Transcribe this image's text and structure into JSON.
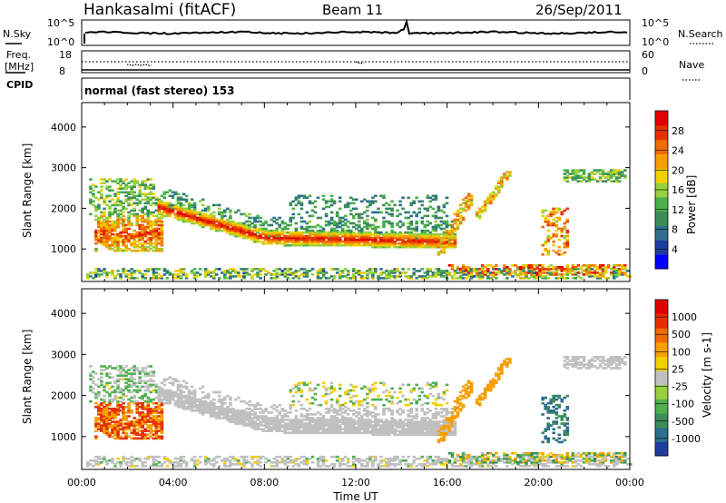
{
  "header": {
    "station": "Hankasalmi (fitACF)",
    "beam": "Beam 11",
    "date": "26/Sep/2011"
  },
  "noise_panel": {
    "left_label": "N.Sky",
    "left_ticks": [
      "10^5",
      "10^0"
    ],
    "right_label": "N.Search",
    "right_ticks": [
      "10^5",
      "10^0"
    ]
  },
  "freq_panel": {
    "left_label_1": "Freq.",
    "left_label_2": "[MHz]",
    "left_ticks": [
      "18",
      "8"
    ],
    "right_label": "Nave",
    "right_ticks": [
      "60",
      "0"
    ]
  },
  "cpid": {
    "label": "CPID",
    "value": "normal (fast stereo) 153"
  },
  "colors": {
    "power": [
      "#0000ff",
      "#1e3ca0",
      "#2e6e8e",
      "#3c8c5a",
      "#4bb04b",
      "#96d03c",
      "#f0d000",
      "#f5a000",
      "#ef6a00",
      "#e63000",
      "#e00000"
    ],
    "velocity": [
      "#1e3ca0",
      "#2e6e8e",
      "#3c8c5a",
      "#50b050",
      "#96d03c",
      "#c0c0c0",
      "#f0d000",
      "#f5a000",
      "#ef6a00",
      "#e63000",
      "#e00000"
    ]
  },
  "chart_data": [
    {
      "type": "heatmap",
      "title": "",
      "xlabel": "Time UT",
      "ylabel": "Slant Range [km]",
      "x_tick_labels": [
        "00:00",
        "04:00",
        "08:00",
        "12:00",
        "16:00",
        "20:00",
        "00:00"
      ],
      "y_ticks": [
        1000,
        2000,
        3000,
        4000
      ],
      "xlim": [
        0,
        24
      ],
      "ylim": [
        200,
        4600
      ],
      "colorbar_label": "Power [dB]",
      "colorbar_ticks": [
        "4",
        "8",
        "12",
        "16",
        "20",
        "24",
        "28"
      ],
      "colorbar_range": [
        0,
        30
      ]
    },
    {
      "type": "heatmap",
      "title": "",
      "xlabel": "Time UT",
      "ylabel": "Slant Range [km]",
      "x_tick_labels": [
        "00:00",
        "04:00",
        "08:00",
        "12:00",
        "16:00",
        "20:00",
        "00:00"
      ],
      "y_ticks": [
        1000,
        2000,
        3000,
        4000
      ],
      "xlim": [
        0,
        24
      ],
      "ylim": [
        200,
        4600
      ],
      "colorbar_label": "Velocity [m s-1]",
      "colorbar_ticks": [
        "1000",
        "500",
        "100",
        "25",
        "-25",
        "-100",
        "-500",
        "-1000"
      ]
    }
  ]
}
